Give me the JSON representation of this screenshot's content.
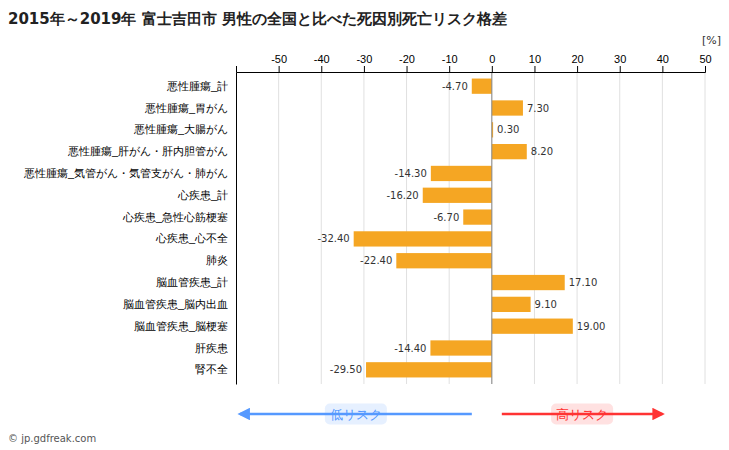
{
  "chart_data": {
    "type": "bar",
    "orientation": "horizontal",
    "title": "2015年～2019年 富士吉田市 男性の全国と比べた死因別死亡リスク格差",
    "xlabel": "[%]",
    "categories": [
      "悪性腫瘍_計",
      "悪性腫瘍_胃がん",
      "悪性腫瘍_大腸がん",
      "悪性腫瘍_肝がん・肝内胆管がん",
      "悪性腫瘍_気管がん・気管支がん・肺がん",
      "心疾患_計",
      "心疾患_急性心筋梗塞",
      "心疾患_心不全",
      "肺炎",
      "脳血管疾患_計",
      "脳血管疾患_脳内出血",
      "脳血管疾患_脳梗塞",
      "肝疾患",
      "腎不全"
    ],
    "values": [
      -4.7,
      7.3,
      0.3,
      8.2,
      -14.3,
      -16.2,
      -6.7,
      -32.4,
      -22.4,
      17.1,
      9.1,
      19.0,
      -14.4,
      -29.5
    ],
    "value_labels": [
      "-4.70",
      "7.30",
      "0.30",
      "8.20",
      "-14.30",
      "-16.20",
      "-6.70",
      "-32.40",
      "-22.40",
      "17.10",
      "9.10",
      "19.00",
      "-14.40",
      "-29.50"
    ],
    "data_labels": true,
    "color": "#F5A623",
    "xlim": [
      -60,
      50
    ],
    "xticks": [
      -50,
      -40,
      -30,
      -20,
      -10,
      0,
      10,
      20,
      30,
      40,
      50
    ],
    "grid": true,
    "annotations": [
      {
        "text": "低リスク",
        "color": "#5599FF"
      },
      {
        "text": "高リスク",
        "color": "#FF3333"
      },
      {
        "text": "© jp.gdfreak.com"
      }
    ]
  }
}
